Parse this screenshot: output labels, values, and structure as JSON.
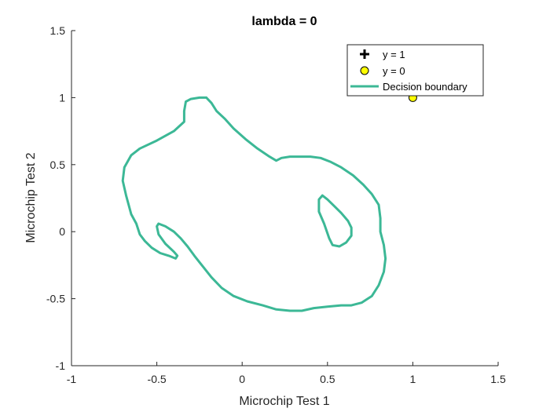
{
  "chart_data": {
    "type": "line",
    "title": "lambda = 0",
    "xlabel": "Microchip Test 1",
    "ylabel": "Microchip Test 2",
    "xlim": [
      -1,
      1.5
    ],
    "ylim": [
      -1,
      1.5
    ],
    "xticks": [
      -1,
      -0.5,
      0,
      0.5,
      1,
      1.5
    ],
    "yticks": [
      -1,
      -0.5,
      0,
      0.5,
      1,
      1.5
    ],
    "xtick_labels": [
      "-1",
      "-0.5",
      "0",
      "0.5",
      "1",
      "1.5"
    ],
    "ytick_labels": [
      "-1",
      "-0.5",
      "0",
      "0.5",
      "1",
      "1.5"
    ],
    "grid": false,
    "legend_position": "top-right",
    "series": [
      {
        "name": "y = 1",
        "kind": "marker-plus",
        "color": "#000000",
        "points": []
      },
      {
        "name": "y = 0",
        "kind": "marker-circle",
        "color": "#ffff00",
        "edge_color": "#000000",
        "points": [
          [
            1.0,
            1.0
          ]
        ]
      },
      {
        "name": "Decision boundary",
        "kind": "line",
        "color": "#3cb896",
        "paths": [
          [
            [
              -0.21,
              1.0
            ],
            [
              -0.25,
              1.0
            ],
            [
              -0.3,
              0.99
            ],
            [
              -0.33,
              0.97
            ],
            [
              -0.34,
              0.9
            ],
            [
              -0.34,
              0.82
            ],
            [
              -0.4,
              0.75
            ],
            [
              -0.5,
              0.68
            ],
            [
              -0.6,
              0.62
            ],
            [
              -0.65,
              0.57
            ],
            [
              -0.69,
              0.48
            ],
            [
              -0.7,
              0.38
            ],
            [
              -0.68,
              0.27
            ],
            [
              -0.65,
              0.13
            ],
            [
              -0.62,
              0.06
            ],
            [
              -0.6,
              -0.02
            ],
            [
              -0.57,
              -0.07
            ],
            [
              -0.53,
              -0.12
            ],
            [
              -0.48,
              -0.16
            ],
            [
              -0.43,
              -0.18
            ],
            [
              -0.39,
              -0.2
            ],
            [
              -0.38,
              -0.18
            ],
            [
              -0.4,
              -0.15
            ],
            [
              -0.45,
              -0.09
            ],
            [
              -0.49,
              -0.02
            ],
            [
              -0.5,
              0.04
            ],
            [
              -0.49,
              0.06
            ],
            [
              -0.45,
              0.04
            ],
            [
              -0.4,
              0.0
            ],
            [
              -0.36,
              -0.05
            ],
            [
              -0.32,
              -0.11
            ],
            [
              -0.28,
              -0.18
            ],
            [
              -0.23,
              -0.26
            ],
            [
              -0.18,
              -0.34
            ],
            [
              -0.12,
              -0.42
            ],
            [
              -0.05,
              -0.48
            ],
            [
              0.03,
              -0.52
            ],
            [
              0.12,
              -0.55
            ],
            [
              0.2,
              -0.58
            ],
            [
              0.28,
              -0.59
            ],
            [
              0.35,
              -0.59
            ],
            [
              0.42,
              -0.57
            ],
            [
              0.5,
              -0.56
            ],
            [
              0.58,
              -0.55
            ],
            [
              0.64,
              -0.55
            ],
            [
              0.7,
              -0.53
            ],
            [
              0.76,
              -0.48
            ],
            [
              0.8,
              -0.4
            ],
            [
              0.83,
              -0.3
            ],
            [
              0.84,
              -0.2
            ],
            [
              0.83,
              -0.1
            ],
            [
              0.81,
              0.0
            ],
            [
              0.81,
              0.1
            ],
            [
              0.8,
              0.2
            ],
            [
              0.76,
              0.28
            ],
            [
              0.71,
              0.35
            ],
            [
              0.65,
              0.42
            ],
            [
              0.58,
              0.48
            ],
            [
              0.52,
              0.52
            ],
            [
              0.46,
              0.55
            ],
            [
              0.4,
              0.56
            ],
            [
              0.34,
              0.56
            ],
            [
              0.28,
              0.56
            ],
            [
              0.23,
              0.55
            ],
            [
              0.2,
              0.53
            ],
            [
              0.16,
              0.56
            ],
            [
              0.09,
              0.62
            ],
            [
              0.02,
              0.69
            ],
            [
              -0.05,
              0.77
            ],
            [
              -0.1,
              0.84
            ],
            [
              -0.15,
              0.9
            ],
            [
              -0.18,
              0.96
            ],
            [
              -0.21,
              1.0
            ]
          ],
          [
            [
              0.47,
              0.27
            ],
            [
              0.45,
              0.24
            ],
            [
              0.45,
              0.15
            ],
            [
              0.48,
              0.06
            ],
            [
              0.51,
              -0.05
            ],
            [
              0.53,
              -0.1
            ],
            [
              0.57,
              -0.11
            ],
            [
              0.61,
              -0.08
            ],
            [
              0.64,
              -0.03
            ],
            [
              0.64,
              0.03
            ],
            [
              0.62,
              0.08
            ],
            [
              0.58,
              0.14
            ],
            [
              0.54,
              0.19
            ],
            [
              0.5,
              0.24
            ],
            [
              0.47,
              0.27
            ]
          ]
        ]
      }
    ]
  }
}
